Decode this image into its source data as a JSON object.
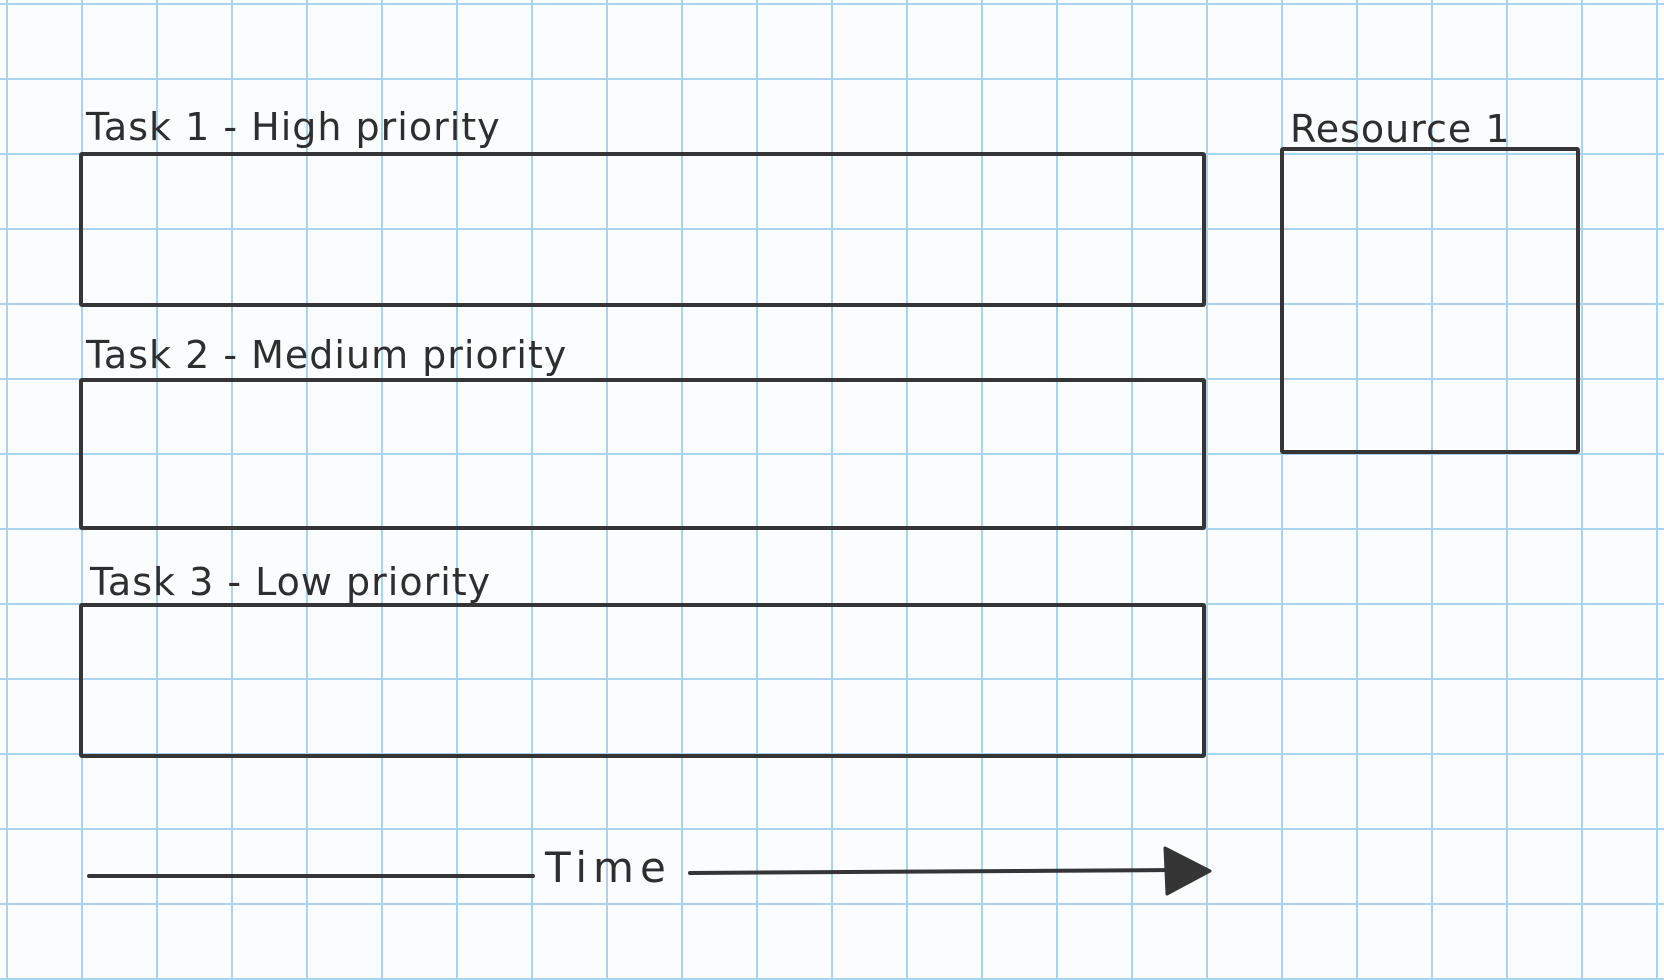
{
  "diagram": {
    "tasks": [
      {
        "label": "Task 1 - High priority"
      },
      {
        "label": "Task 2 - Medium priority"
      },
      {
        "label": "Task 3 - Low priority"
      }
    ],
    "resource": {
      "label": "Resource 1"
    },
    "time_axis": {
      "label": "Time"
    }
  },
  "colors": {
    "ink": "#353535",
    "grid": "#a9d3ee",
    "paper": "#fbfcfd"
  }
}
